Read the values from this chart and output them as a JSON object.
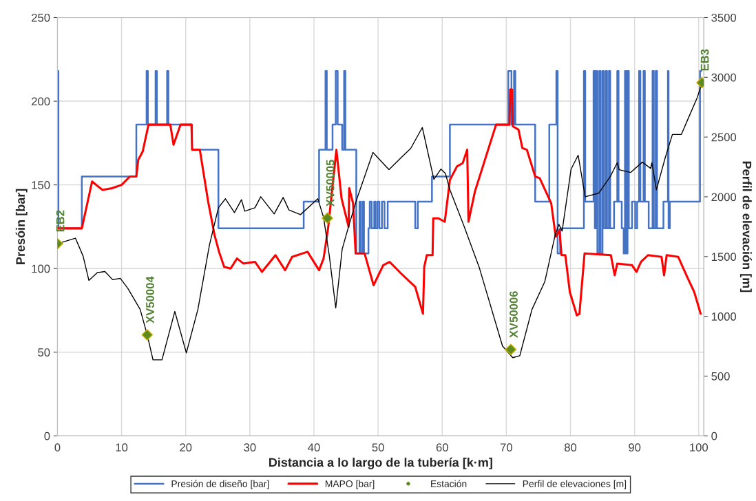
{
  "chart_data": {
    "type": "line",
    "xlabel": "Distancia a lo largo de la tubería [k·m]",
    "ylabel": "Presóin [bar]",
    "y2label": "Perfil de elevación [m]",
    "xlim": [
      0,
      100.8
    ],
    "xticks": [
      0,
      10,
      20,
      30,
      40,
      50,
      60,
      70,
      80,
      90,
      100
    ],
    "ylim": [
      0,
      250
    ],
    "yticks": [
      0,
      50,
      100,
      150,
      200,
      250
    ],
    "y2lim": [
      0,
      3500
    ],
    "y2ticks": [
      0,
      500,
      1000,
      1500,
      2000,
      2500,
      3000,
      3500
    ],
    "grid": true,
    "legend": "bottom",
    "series": [
      {
        "name": "Presión de diseño [bar]",
        "type": "step",
        "color": "#4472c4",
        "marker": "none",
        "x": [
          0,
          0.15,
          3.8,
          12.3,
          13.9,
          14.1,
          15.3,
          15.5,
          17.1,
          17.3,
          21.0,
          25.1,
          38.4,
          40.8,
          41.8,
          42.0,
          42.9,
          43.4,
          43.7,
          44.4,
          44.7,
          44.9,
          46.6,
          47.1,
          47.3,
          47.6,
          47.8,
          48.5,
          48.7,
          49.0,
          49.4,
          49.6,
          49.9,
          50.2,
          50.6,
          51.0,
          51.5,
          55.8,
          56.2,
          58.4,
          61.2,
          70.3,
          70.8,
          71.2,
          71.4,
          74.5,
          76.7,
          77.8,
          78.0,
          78.4,
          82.1,
          82.3,
          83.6,
          83.8,
          84.0,
          84.2,
          84.5,
          84.7,
          85.0,
          85.2,
          85.5,
          85.7,
          86.0,
          86.2,
          86.8,
          87.3,
          87.5,
          88.0,
          88.3,
          88.5,
          88.7,
          88.9,
          89.1,
          89.6,
          90.1,
          90.4,
          90.7,
          90.9,
          91.4,
          91.6,
          92.2,
          92.8,
          93.0,
          93.3,
          93.5,
          94.5,
          95.2,
          95.3,
          95.5,
          100.2,
          100.4
        ],
        "values": [
          218,
          124,
          155,
          186,
          218,
          186,
          218,
          186,
          218,
          186,
          171,
          124,
          140,
          171,
          218,
          171,
          186,
          218,
          186,
          171,
          218,
          171,
          109,
          140,
          109,
          140,
          109,
          124,
          140,
          124,
          140,
          124,
          140,
          124,
          140,
          124,
          140,
          124,
          140,
          155,
          186,
          218,
          186,
          218,
          186,
          140,
          186,
          218,
          109,
          124,
          218,
          140,
          218,
          124,
          218,
          109,
          218,
          109,
          218,
          124,
          218,
          124,
          218,
          124,
          140,
          218,
          140,
          124,
          109,
          218,
          109,
          218,
          124,
          140,
          124,
          140,
          218,
          140,
          218,
          140,
          124,
          218,
          124,
          218,
          124,
          140,
          218,
          124,
          140,
          218,
          218
        ]
      },
      {
        "name": "MAPO [bar]",
        "color": "#ff0000",
        "marker": "none",
        "x": [
          0,
          3.8,
          5.4,
          7,
          8.5,
          10,
          11.3,
          12.3,
          12.6,
          13.3,
          14.2,
          17.6,
          18.1,
          19.2,
          20.9,
          21.0,
          22.2,
          23.5,
          24.5,
          25.2,
          26,
          27,
          28,
          29,
          30.8,
          31.9,
          34,
          35.5,
          36.6,
          39,
          40.8,
          41.5,
          42.2,
          43.5,
          44.3,
          45.4,
          45.5,
          46.1,
          46.5,
          47.9,
          49.3,
          50.8,
          51.8,
          53.6,
          55.8,
          57,
          57.2,
          57.6,
          58.5,
          58.6,
          59.4,
          60.4,
          61.2,
          62.3,
          63.2,
          63.9,
          64.1,
          65.1,
          68.4,
          70.5,
          70.6,
          70.9,
          71.0,
          71.9,
          72.5,
          73.2,
          74.5,
          75.2,
          77,
          77.7,
          78.3,
          78.6,
          79.2,
          79.9,
          81,
          81.4,
          82.2,
          86.3,
          86.9,
          87.3,
          89.6,
          90.3,
          91,
          92.1,
          94.2,
          94.6,
          95,
          96.8,
          98.2,
          99.3,
          100.3
        ],
        "values": [
          124,
          124,
          152,
          147,
          148,
          150,
          155,
          155,
          165,
          170,
          186,
          186,
          174,
          186,
          186,
          171,
          171,
          140,
          120,
          110,
          101,
          100,
          106,
          103,
          104,
          98,
          108,
          99,
          107,
          110,
          99,
          106,
          124,
          171,
          142,
          125,
          148,
          139,
          109,
          109,
          90,
          102,
          104,
          97,
          89,
          73,
          101,
          108,
          108,
          130,
          130,
          128,
          153,
          161,
          163,
          171,
          128,
          146,
          186,
          186,
          207,
          207,
          185,
          183,
          172,
          171,
          155,
          154,
          139,
          119,
          123,
          108,
          108,
          86,
          72,
          73,
          109,
          108,
          96,
          103,
          102,
          98,
          104,
          108,
          107,
          96,
          108,
          107,
          95,
          86,
          73
        ]
      },
      {
        "name": "Estación",
        "type": "scatter",
        "axis": "y2",
        "color": "#5f8a1e",
        "marker": "diamond",
        "x": [
          0,
          14,
          42.1,
          70.7,
          100.5
        ],
        "values": [
          1608,
          845,
          1822,
          723,
          2955
        ]
      },
      {
        "name": "Perfil de elevaciones [m]",
        "type": "line",
        "axis": "y2",
        "color": "#000000",
        "marker": "none",
        "x": [
          0,
          2.8,
          4.0,
          4.9,
          6.2,
          7.4,
          8.6,
          9.8,
          11.0,
          12.9,
          14.0,
          14.9,
          16.3,
          18.3,
          20.1,
          21.9,
          23.7,
          25.1,
          26.2,
          27.6,
          28.7,
          29.2,
          30.8,
          31.7,
          33.8,
          35.2,
          36.1,
          37.9,
          40.6,
          41.5,
          42.4,
          43.4,
          44.4,
          45.4,
          46.7,
          49.2,
          51.7,
          53.3,
          55.1,
          56.9,
          58.7,
          59.8,
          60.5,
          61.2,
          63.3,
          65.8,
          69.4,
          71.0,
          72.1,
          74.0,
          76.0,
          77.6,
          78.2,
          78.7,
          80.1,
          81.2,
          82.3,
          84.4,
          86.2,
          87.3,
          87.6,
          89.4,
          91.2,
          92.5,
          92.7,
          93.4,
          94.8,
          95.9,
          97.3,
          98.4,
          99.8,
          100.5
        ],
        "values": [
          1608,
          1654,
          1504,
          1301,
          1365,
          1375,
          1307,
          1318,
          1232,
          1058,
          845,
          636,
          636,
          1041,
          694,
          1058,
          1596,
          1909,
          1984,
          1868,
          1976,
          1880,
          1909,
          2001,
          1857,
          1995,
          1890,
          1851,
          1984,
          1828,
          1504,
          1070,
          1562,
          1752,
          1984,
          2371,
          2227,
          2313,
          2406,
          2580,
          2146,
          2232,
          2196,
          2059,
          1770,
          1405,
          752,
          654,
          671,
          1058,
          1290,
          1677,
          1770,
          1713,
          2232,
          2348,
          2001,
          2030,
          2169,
          2285,
          2227,
          2204,
          2290,
          2238,
          2285,
          2059,
          2331,
          2522,
          2522,
          2660,
          2834,
          2955
        ]
      }
    ],
    "annotations": [
      "EB2",
      "XV50004",
      "XV50005",
      "XV50006",
      "EB3"
    ]
  }
}
